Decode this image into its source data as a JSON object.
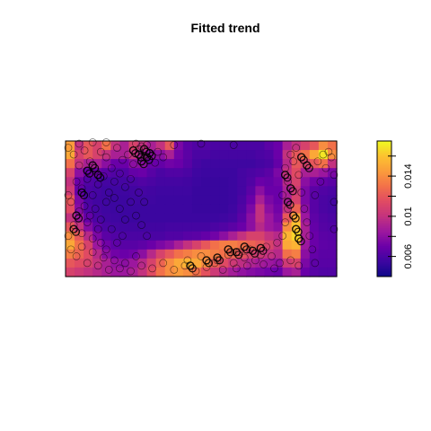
{
  "chart_data": {
    "type": "heatmap",
    "title": "Fitted trend",
    "colorbar": {
      "ticks": [
        0.006,
        0.01,
        0.014
      ],
      "tick_labels": [
        "0.006",
        "0.01",
        "0.014"
      ],
      "range": [
        0.004,
        0.0175
      ],
      "palette": [
        "#0d0887",
        "#3c06a0",
        "#6a00a8",
        "#9c179e",
        "#c3327f",
        "#e04a63",
        "#f2704a",
        "#fb9b3c",
        "#fcc130",
        "#f0f921"
      ]
    },
    "grid": {
      "nx": 30,
      "ny": 15,
      "values": [
        [
          0.0145,
          0.01,
          0.012,
          0.011,
          0.013,
          0.01,
          0.009,
          0.011,
          0.01,
          0.009,
          0.01,
          0.012,
          0.0075,
          0.0065,
          0.0062,
          0.0062,
          0.006,
          0.006,
          0.006,
          0.006,
          0.006,
          0.006,
          0.0065,
          0.007,
          0.009,
          0.01,
          0.011,
          0.012,
          0.014,
          0.013
        ],
        [
          0.015,
          0.011,
          0.012,
          0.011,
          0.01,
          0.009,
          0.009,
          0.01,
          0.009,
          0.008,
          0.008,
          0.009,
          0.0072,
          0.0065,
          0.006,
          0.006,
          0.0058,
          0.0058,
          0.0058,
          0.0058,
          0.0058,
          0.006,
          0.0062,
          0.007,
          0.01,
          0.012,
          0.013,
          0.015,
          0.017,
          0.014
        ],
        [
          0.013,
          0.01,
          0.009,
          0.009,
          0.008,
          0.007,
          0.007,
          0.008,
          0.008,
          0.007,
          0.0068,
          0.0072,
          0.007,
          0.0064,
          0.0058,
          0.0056,
          0.0056,
          0.0056,
          0.0056,
          0.0056,
          0.0056,
          0.0058,
          0.006,
          0.0068,
          0.0095,
          0.012,
          0.011,
          0.012,
          0.013,
          0.01
        ],
        [
          0.011,
          0.008,
          0.007,
          0.007,
          0.0065,
          0.0062,
          0.0062,
          0.0068,
          0.007,
          0.0064,
          0.006,
          0.0062,
          0.0062,
          0.006,
          0.0056,
          0.0055,
          0.0055,
          0.0055,
          0.0055,
          0.0058,
          0.006,
          0.0062,
          0.0065,
          0.0075,
          0.01,
          0.0115,
          0.009,
          0.009,
          0.0085,
          0.0075
        ],
        [
          0.01,
          0.007,
          0.0062,
          0.006,
          0.0058,
          0.0058,
          0.0058,
          0.006,
          0.0062,
          0.006,
          0.0058,
          0.0058,
          0.0058,
          0.0057,
          0.0055,
          0.0054,
          0.0054,
          0.0054,
          0.0055,
          0.0058,
          0.0062,
          0.007,
          0.0068,
          0.0072,
          0.0095,
          0.011,
          0.008,
          0.0072,
          0.0068,
          0.0065
        ],
        [
          0.0105,
          0.0068,
          0.006,
          0.0058,
          0.0056,
          0.0056,
          0.0056,
          0.0057,
          0.0058,
          0.0057,
          0.0056,
          0.0056,
          0.0056,
          0.0056,
          0.0054,
          0.0054,
          0.0054,
          0.0054,
          0.0055,
          0.0058,
          0.0065,
          0.008,
          0.007,
          0.007,
          0.009,
          0.0105,
          0.0075,
          0.0065,
          0.0062,
          0.006
        ],
        [
          0.012,
          0.0075,
          0.006,
          0.0057,
          0.0056,
          0.0055,
          0.0055,
          0.0056,
          0.0056,
          0.0056,
          0.0055,
          0.0055,
          0.0055,
          0.0055,
          0.0054,
          0.0054,
          0.0054,
          0.0054,
          0.0055,
          0.006,
          0.007,
          0.009,
          0.0075,
          0.007,
          0.009,
          0.011,
          0.0075,
          0.0064,
          0.006,
          0.0058
        ],
        [
          0.0115,
          0.0078,
          0.0062,
          0.0058,
          0.0056,
          0.0055,
          0.0055,
          0.0055,
          0.0055,
          0.0055,
          0.0055,
          0.0055,
          0.0055,
          0.0055,
          0.0054,
          0.0054,
          0.0054,
          0.0054,
          0.0056,
          0.0062,
          0.0075,
          0.01,
          0.008,
          0.0072,
          0.01,
          0.0125,
          0.008,
          0.0064,
          0.006,
          0.0058
        ],
        [
          0.01,
          0.0085,
          0.0068,
          0.006,
          0.0057,
          0.0056,
          0.0055,
          0.0055,
          0.0055,
          0.0055,
          0.0055,
          0.0055,
          0.0055,
          0.0055,
          0.0055,
          0.0055,
          0.0055,
          0.0056,
          0.0058,
          0.0065,
          0.008,
          0.01,
          0.0085,
          0.0075,
          0.012,
          0.015,
          0.0085,
          0.0066,
          0.0062,
          0.006
        ],
        [
          0.012,
          0.01,
          0.0078,
          0.0065,
          0.006,
          0.0058,
          0.0057,
          0.0057,
          0.0057,
          0.0057,
          0.0057,
          0.0058,
          0.0058,
          0.0058,
          0.0058,
          0.0058,
          0.006,
          0.0062,
          0.0065,
          0.007,
          0.008,
          0.0095,
          0.0085,
          0.008,
          0.014,
          0.016,
          0.009,
          0.0068,
          0.0063,
          0.0062
        ],
        [
          0.014,
          0.012,
          0.0095,
          0.0075,
          0.0065,
          0.0062,
          0.006,
          0.006,
          0.006,
          0.006,
          0.006,
          0.0062,
          0.0062,
          0.0064,
          0.0065,
          0.0068,
          0.0072,
          0.008,
          0.009,
          0.01,
          0.011,
          0.011,
          0.01,
          0.0095,
          0.0155,
          0.0165,
          0.009,
          0.007,
          0.0065,
          0.0064
        ],
        [
          0.015,
          0.013,
          0.011,
          0.0085,
          0.0072,
          0.0066,
          0.0064,
          0.0064,
          0.0066,
          0.007,
          0.0075,
          0.008,
          0.009,
          0.01,
          0.011,
          0.012,
          0.013,
          0.0135,
          0.0135,
          0.013,
          0.0125,
          0.012,
          0.011,
          0.01,
          0.015,
          0.0155,
          0.0085,
          0.007,
          0.0066,
          0.0065
        ],
        [
          0.0135,
          0.0125,
          0.0115,
          0.0095,
          0.008,
          0.0072,
          0.007,
          0.0072,
          0.008,
          0.0095,
          0.011,
          0.012,
          0.013,
          0.0135,
          0.014,
          0.014,
          0.0135,
          0.013,
          0.0125,
          0.0118,
          0.011,
          0.0105,
          0.01,
          0.0095,
          0.013,
          0.0135,
          0.008,
          0.0068,
          0.0065,
          0.0065
        ],
        [
          0.012,
          0.0115,
          0.011,
          0.01,
          0.009,
          0.0082,
          0.008,
          0.0085,
          0.0095,
          0.011,
          0.0125,
          0.014,
          0.015,
          0.0155,
          0.015,
          0.014,
          0.0125,
          0.0115,
          0.0105,
          0.0098,
          0.0092,
          0.0088,
          0.0085,
          0.0082,
          0.0105,
          0.011,
          0.0075,
          0.0066,
          0.0064,
          0.0064
        ],
        [
          0.011,
          0.0105,
          0.01,
          0.0095,
          0.009,
          0.0085,
          0.0085,
          0.009,
          0.01,
          0.0115,
          0.013,
          0.014,
          0.0145,
          0.014,
          0.013,
          0.0118,
          0.0105,
          0.0095,
          0.0088,
          0.0082,
          0.0078,
          0.0075,
          0.0072,
          0.007,
          0.0085,
          0.009,
          0.007,
          0.0064,
          0.0062,
          0.0062
        ]
      ]
    },
    "points": [
      [
        0.03,
        0.9
      ],
      [
        0.05,
        0.82
      ],
      [
        0.07,
        0.93
      ],
      [
        0.09,
        0.85
      ],
      [
        0.11,
        0.78
      ],
      [
        0.13,
        0.92
      ],
      [
        0.15,
        0.88
      ],
      [
        0.17,
        0.8
      ],
      [
        0.19,
        0.95
      ],
      [
        0.21,
        0.86
      ],
      [
        0.23,
        0.9
      ],
      [
        0.25,
        0.83
      ],
      [
        0.27,
        0.94
      ],
      [
        0.29,
        0.88
      ],
      [
        0.31,
        0.91
      ],
      [
        0.04,
        0.7
      ],
      [
        0.06,
        0.65
      ],
      [
        0.08,
        0.72
      ],
      [
        0.1,
        0.6
      ],
      [
        0.12,
        0.68
      ],
      [
        0.14,
        0.74
      ],
      [
        0.16,
        0.62
      ],
      [
        0.18,
        0.7
      ],
      [
        0.2,
        0.76
      ],
      [
        0.22,
        0.66
      ],
      [
        0.24,
        0.72
      ],
      [
        0.02,
        0.55
      ],
      [
        0.05,
        0.48
      ],
      [
        0.07,
        0.52
      ],
      [
        0.09,
        0.45
      ],
      [
        0.11,
        0.5
      ],
      [
        0.13,
        0.42
      ],
      [
        0.15,
        0.55
      ],
      [
        0.03,
        0.38
      ],
      [
        0.06,
        0.32
      ],
      [
        0.08,
        0.4
      ],
      [
        0.1,
        0.28
      ],
      [
        0.12,
        0.35
      ],
      [
        0.02,
        0.2
      ],
      [
        0.04,
        0.15
      ],
      [
        0.06,
        0.22
      ],
      [
        0.08,
        0.1
      ],
      [
        0.1,
        0.18
      ],
      [
        0.12,
        0.08
      ],
      [
        0.14,
        0.14
      ],
      [
        0.16,
        0.05
      ],
      [
        0.18,
        0.12
      ],
      [
        0.2,
        0.06
      ],
      [
        0.22,
        0.1
      ],
      [
        0.24,
        0.04
      ],
      [
        0.28,
        0.08
      ],
      [
        0.32,
        0.06
      ],
      [
        0.36,
        0.1
      ],
      [
        0.4,
        0.05
      ],
      [
        0.44,
        0.08
      ],
      [
        0.48,
        0.04
      ],
      [
        0.52,
        0.07
      ],
      [
        0.56,
        0.12
      ],
      [
        0.6,
        0.16
      ],
      [
        0.62,
        0.1
      ],
      [
        0.64,
        0.18
      ],
      [
        0.66,
        0.14
      ],
      [
        0.68,
        0.2
      ],
      [
        0.7,
        0.12
      ],
      [
        0.72,
        0.16
      ],
      [
        0.74,
        0.22
      ],
      [
        0.76,
        0.15
      ],
      [
        0.78,
        0.25
      ],
      [
        0.8,
        0.3
      ],
      [
        0.81,
        0.4
      ],
      [
        0.82,
        0.5
      ],
      [
        0.8,
        0.6
      ],
      [
        0.82,
        0.7
      ],
      [
        0.81,
        0.8
      ],
      [
        0.83,
        0.9
      ],
      [
        0.85,
        0.95
      ],
      [
        0.84,
        0.85
      ],
      [
        0.86,
        0.75
      ],
      [
        0.87,
        0.62
      ],
      [
        0.88,
        0.5
      ],
      [
        0.89,
        0.4
      ],
      [
        0.9,
        0.3
      ],
      [
        0.91,
        0.2
      ],
      [
        0.92,
        0.1
      ],
      [
        0.93,
        0.85
      ],
      [
        0.95,
        0.9
      ],
      [
        0.96,
        0.8
      ],
      [
        0.97,
        0.92
      ],
      [
        0.98,
        0.88
      ],
      [
        0.94,
        0.7
      ],
      [
        0.92,
        0.6
      ],
      [
        0.26,
        0.98
      ],
      [
        0.28,
        0.96
      ],
      [
        0.3,
        0.97
      ],
      [
        0.5,
        0.98
      ],
      [
        0.62,
        0.97
      ],
      [
        0.4,
        0.97
      ],
      [
        0.18,
        0.58
      ],
      [
        0.2,
        0.5
      ],
      [
        0.22,
        0.42
      ],
      [
        0.24,
        0.55
      ],
      [
        0.17,
        0.35
      ],
      [
        0.19,
        0.25
      ],
      [
        0.21,
        0.3
      ],
      [
        0.15,
        0.2
      ],
      [
        0.13,
        0.25
      ],
      [
        0.26,
        0.15
      ],
      [
        0.45,
        0.12
      ],
      [
        0.5,
        0.15
      ],
      [
        0.55,
        0.1
      ],
      [
        0.58,
        0.05
      ],
      [
        0.63,
        0.06
      ],
      [
        0.67,
        0.08
      ],
      [
        0.73,
        0.09
      ],
      [
        0.77,
        0.06
      ],
      [
        0.79,
        0.1
      ],
      [
        0.83,
        0.12
      ],
      [
        0.86,
        0.08
      ],
      [
        0.01,
        0.95
      ],
      [
        0.01,
        0.6
      ],
      [
        0.01,
        0.3
      ],
      [
        0.99,
        0.75
      ],
      [
        0.99,
        0.55
      ],
      [
        0.99,
        0.35
      ],
      [
        0.05,
        0.98
      ],
      [
        0.1,
        0.99
      ],
      [
        0.15,
        0.99
      ],
      [
        0.34,
        0.92
      ],
      [
        0.36,
        0.88
      ],
      [
        0.33,
        0.84
      ],
      [
        0.27,
        0.62
      ],
      [
        0.29,
        0.55
      ],
      [
        0.26,
        0.45
      ],
      [
        0.28,
        0.38
      ],
      [
        0.3,
        0.3
      ]
    ],
    "heavy_points": [
      [
        0.25,
        0.93
      ],
      [
        0.27,
        0.9
      ],
      [
        0.29,
        0.94
      ],
      [
        0.3,
        0.88
      ],
      [
        0.31,
        0.91
      ],
      [
        0.28,
        0.85
      ],
      [
        0.08,
        0.78
      ],
      [
        0.1,
        0.82
      ],
      [
        0.12,
        0.75
      ],
      [
        0.06,
        0.62
      ],
      [
        0.04,
        0.45
      ],
      [
        0.03,
        0.35
      ],
      [
        0.6,
        0.2
      ],
      [
        0.63,
        0.18
      ],
      [
        0.66,
        0.22
      ],
      [
        0.69,
        0.19
      ],
      [
        0.72,
        0.21
      ],
      [
        0.56,
        0.14
      ],
      [
        0.52,
        0.12
      ],
      [
        0.46,
        0.08
      ],
      [
        0.82,
        0.55
      ],
      [
        0.83,
        0.65
      ],
      [
        0.81,
        0.75
      ],
      [
        0.84,
        0.45
      ],
      [
        0.85,
        0.35
      ],
      [
        0.86,
        0.28
      ],
      [
        0.87,
        0.88
      ],
      [
        0.89,
        0.82
      ]
    ]
  }
}
